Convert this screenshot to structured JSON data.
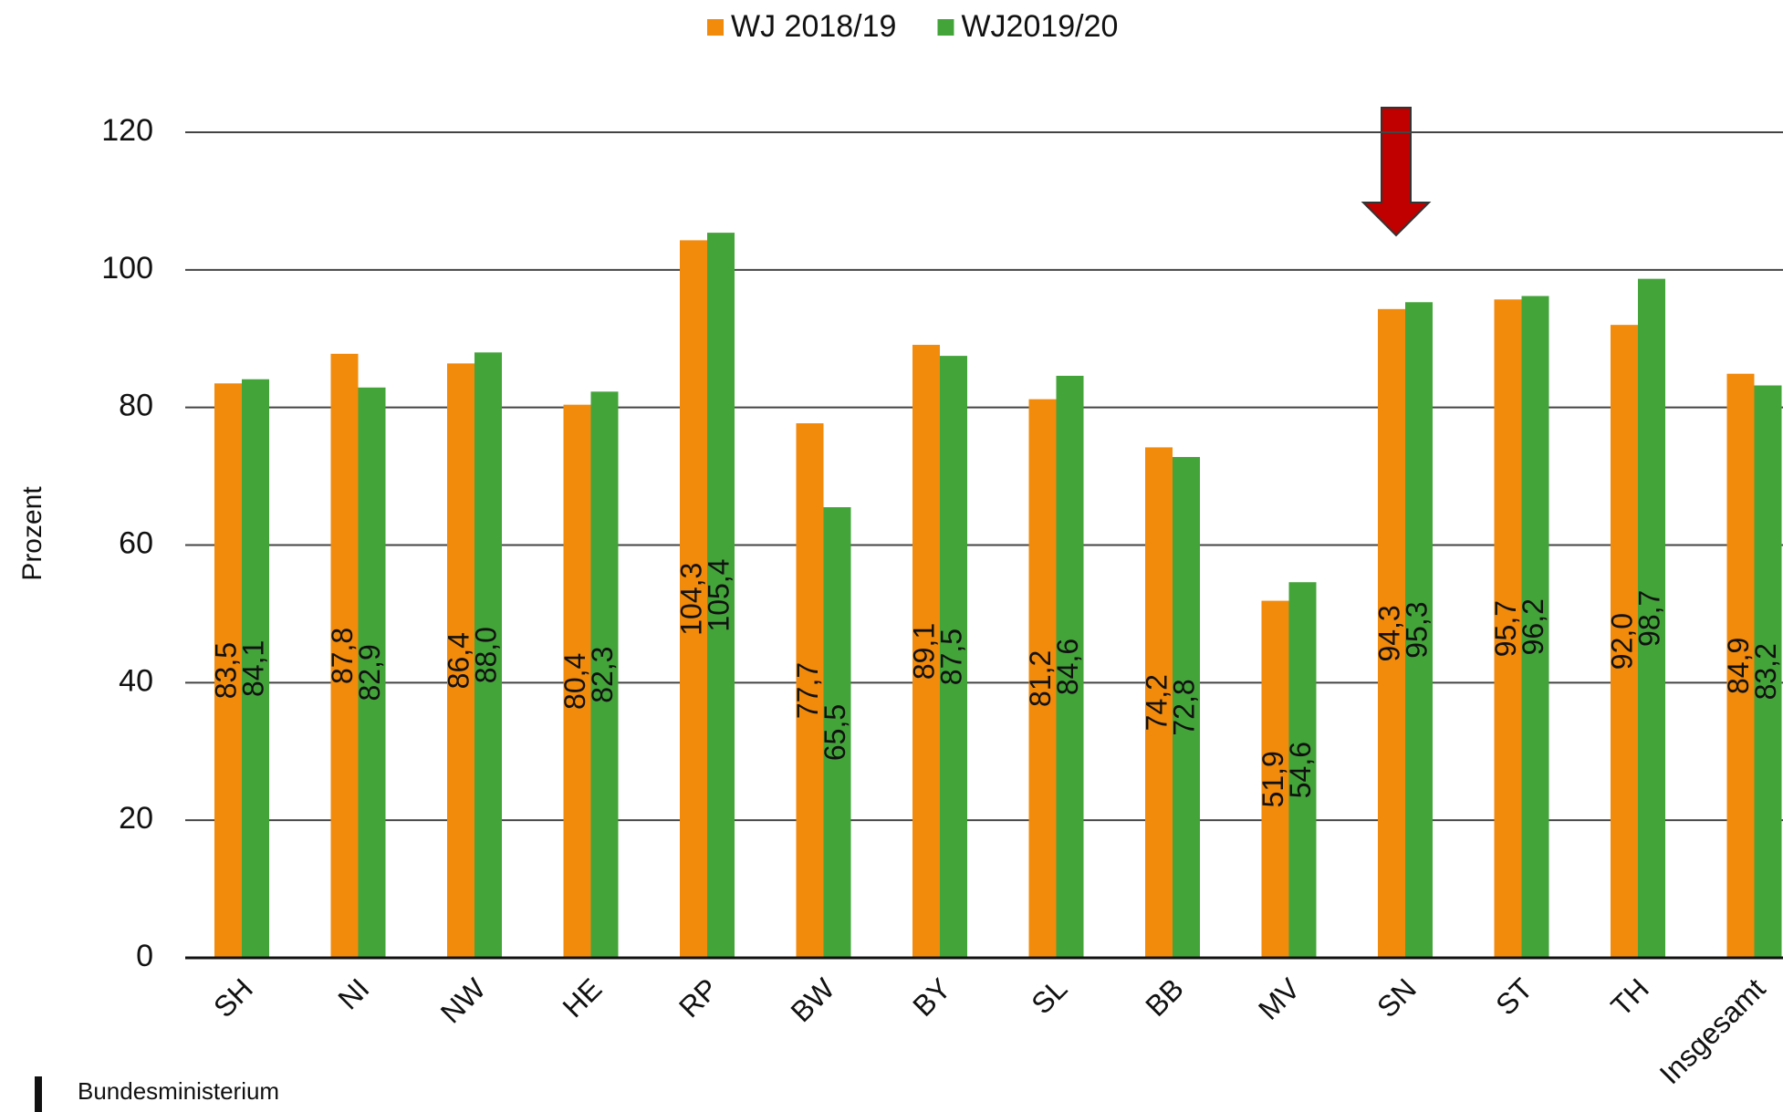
{
  "chart_data": {
    "type": "bar",
    "ylabel": "Prozent",
    "categories": [
      "SH",
      "NI",
      "NW",
      "HE",
      "RP",
      "BW",
      "BY",
      "SL",
      "BB",
      "MV",
      "SN",
      "ST",
      "TH",
      "Insgesamt"
    ],
    "series": [
      {
        "name": "WJ 2018/19",
        "color": "#f28a0c",
        "values": [
          83.5,
          87.8,
          86.4,
          80.4,
          104.3,
          77.7,
          89.1,
          81.2,
          74.2,
          51.9,
          94.3,
          95.7,
          92.0,
          84.9
        ],
        "value_labels": [
          "83,5",
          "87,8",
          "86,4",
          "80,4",
          "104,3",
          "77,7",
          "89,1",
          "81,2",
          "74,2",
          "51,9",
          "94,3",
          "95,7",
          "92,0",
          "84,9"
        ]
      },
      {
        "name": "WJ2019/20",
        "color": "#43a43a",
        "values": [
          84.1,
          82.9,
          88.0,
          82.3,
          105.4,
          65.5,
          87.5,
          84.6,
          72.8,
          54.6,
          95.3,
          96.2,
          98.7,
          83.2
        ],
        "value_labels": [
          "84,1",
          "82,9",
          "88,0",
          "82,3",
          "105,4",
          "65,5",
          "87,5",
          "84,6",
          "72,8",
          "54,6",
          "95,3",
          "96,2",
          "98,7",
          "83,2"
        ]
      }
    ],
    "ylim": [
      0,
      120
    ],
    "yticks": [
      0,
      20,
      40,
      60,
      80,
      100,
      120
    ],
    "grid": true,
    "legend": "top",
    "footer": "Bundesministerium"
  }
}
